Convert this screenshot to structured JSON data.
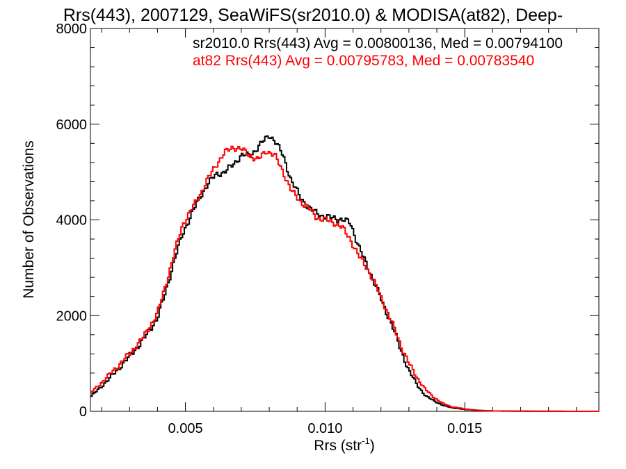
{
  "chart_data": {
    "type": "line",
    "title": "Rrs(443), 2007129, SeaWiFS(sr2010.0) & MODISA(at82), Deep-",
    "xlabel": "Rrs (str",
    "xlabel_sup": "-1",
    "xlabel_close": ")",
    "ylabel": "Number of Observations",
    "xlim": [
      0.0016,
      0.0198
    ],
    "ylim": [
      0,
      8000
    ],
    "x_ticks": [
      {
        "value": 0.005,
        "label": "0.005"
      },
      {
        "value": 0.01,
        "label": "0.010"
      },
      {
        "value": 0.015,
        "label": "0.015"
      }
    ],
    "y_ticks": [
      {
        "value": 0,
        "label": "0"
      },
      {
        "value": 2000,
        "label": "2000"
      },
      {
        "value": 4000,
        "label": "4000"
      },
      {
        "value": 6000,
        "label": "6000"
      },
      {
        "value": 8000,
        "label": "8000"
      }
    ],
    "grid": false,
    "legend": "top-right",
    "series": [
      {
        "name": "sr2010.0 Rrs(443) Avg = 0.00800136, Med = 0.00794100",
        "color": "#000000",
        "points": [
          [
            0.0016,
            300
          ],
          [
            0.002,
            520
          ],
          [
            0.0025,
            820
          ],
          [
            0.003,
            1150
          ],
          [
            0.0035,
            1500
          ],
          [
            0.004,
            1950
          ],
          [
            0.0043,
            2500
          ],
          [
            0.0046,
            3150
          ],
          [
            0.0049,
            3700
          ],
          [
            0.0052,
            4100
          ],
          [
            0.0055,
            4450
          ],
          [
            0.0058,
            4750
          ],
          [
            0.0061,
            4950
          ],
          [
            0.0064,
            5000
          ],
          [
            0.0067,
            5150
          ],
          [
            0.007,
            5350
          ],
          [
            0.0073,
            5350
          ],
          [
            0.0075,
            5450
          ],
          [
            0.0078,
            5650
          ],
          [
            0.008,
            5780
          ],
          [
            0.0082,
            5650
          ],
          [
            0.0085,
            5350
          ],
          [
            0.0088,
            4800
          ],
          [
            0.0091,
            4500
          ],
          [
            0.0094,
            4250
          ],
          [
            0.0097,
            4150
          ],
          [
            0.01,
            4050
          ],
          [
            0.0103,
            4050
          ],
          [
            0.0106,
            4000
          ],
          [
            0.0109,
            3950
          ],
          [
            0.0112,
            3450
          ],
          [
            0.0115,
            3050
          ],
          [
            0.0118,
            2650
          ],
          [
            0.0121,
            2200
          ],
          [
            0.0124,
            1800
          ],
          [
            0.0127,
            1300
          ],
          [
            0.013,
            850
          ],
          [
            0.0133,
            550
          ],
          [
            0.0136,
            320
          ],
          [
            0.0139,
            220
          ],
          [
            0.0142,
            130
          ],
          [
            0.0145,
            80
          ],
          [
            0.015,
            40
          ],
          [
            0.0155,
            20
          ],
          [
            0.016,
            8
          ],
          [
            0.017,
            3
          ],
          [
            0.0185,
            1
          ],
          [
            0.0198,
            0
          ]
        ]
      },
      {
        "name": "at82 Rrs(443) Avg = 0.00795783, Med = 0.00783540",
        "color": "#ff0000",
        "points": [
          [
            0.0016,
            380
          ],
          [
            0.002,
            600
          ],
          [
            0.0025,
            900
          ],
          [
            0.003,
            1200
          ],
          [
            0.0035,
            1550
          ],
          [
            0.004,
            2050
          ],
          [
            0.0043,
            2650
          ],
          [
            0.0046,
            3300
          ],
          [
            0.0049,
            3900
          ],
          [
            0.0052,
            4200
          ],
          [
            0.0055,
            4500
          ],
          [
            0.0058,
            4850
          ],
          [
            0.0061,
            5150
          ],
          [
            0.0064,
            5400
          ],
          [
            0.0067,
            5520
          ],
          [
            0.007,
            5480
          ],
          [
            0.0073,
            5350
          ],
          [
            0.0076,
            5250
          ],
          [
            0.0079,
            5450
          ],
          [
            0.0082,
            5350
          ],
          [
            0.0085,
            5000
          ],
          [
            0.0088,
            4600
          ],
          [
            0.0091,
            4400
          ],
          [
            0.0094,
            4250
          ],
          [
            0.0097,
            4050
          ],
          [
            0.01,
            4000
          ],
          [
            0.0103,
            3950
          ],
          [
            0.0106,
            3850
          ],
          [
            0.0109,
            3600
          ],
          [
            0.0112,
            3250
          ],
          [
            0.0115,
            3000
          ],
          [
            0.0118,
            2650
          ],
          [
            0.0121,
            2250
          ],
          [
            0.0124,
            1850
          ],
          [
            0.0127,
            1400
          ],
          [
            0.013,
            1000
          ],
          [
            0.0133,
            700
          ],
          [
            0.0136,
            450
          ],
          [
            0.0139,
            290
          ],
          [
            0.0142,
            170
          ],
          [
            0.0145,
            100
          ],
          [
            0.015,
            50
          ],
          [
            0.0155,
            20
          ],
          [
            0.016,
            8
          ],
          [
            0.017,
            3
          ],
          [
            0.0185,
            1
          ],
          [
            0.0198,
            0
          ]
        ]
      }
    ]
  }
}
